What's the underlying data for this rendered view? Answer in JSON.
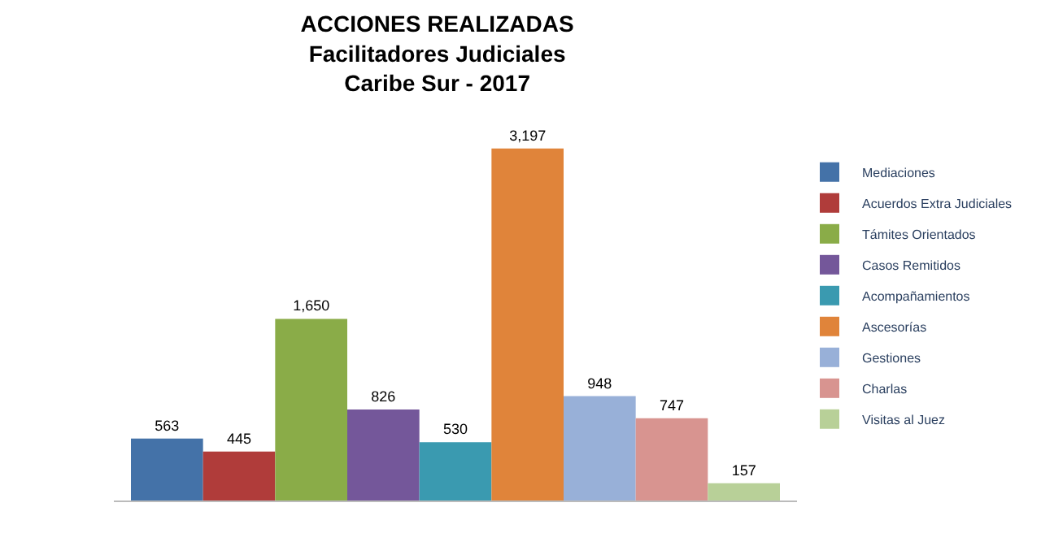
{
  "chart_data": {
    "type": "bar",
    "title": "ACCIONES REALIZADAS",
    "subtitle": "Facilitadores Judiciales\nCaribe Sur - 2017",
    "categories": [
      null
    ],
    "legend": "right",
    "series": [
      {
        "name": "Mediaciones",
        "color": "#4472a8",
        "values": [
          563
        ],
        "value_labels": [
          "563"
        ]
      },
      {
        "name": "Acuerdos Extra Judiciales",
        "color": "#b03c3a",
        "values": [
          445
        ],
        "value_labels": [
          "445"
        ]
      },
      {
        "name": "Támites Orientados",
        "color": "#8aac48",
        "values": [
          1650
        ],
        "value_labels": [
          "1,650"
        ]
      },
      {
        "name": "Casos Remitidos",
        "color": "#74579a",
        "values": [
          826
        ],
        "value_labels": [
          "826"
        ]
      },
      {
        "name": "Acompañamientos",
        "color": "#3a9ab0",
        "values": [
          530
        ],
        "value_labels": [
          "530"
        ]
      },
      {
        "name": "Ascesorías",
        "color": "#e0843a",
        "values": [
          3197
        ],
        "value_labels": [
          "3,197"
        ]
      },
      {
        "name": "Gestiones",
        "color": "#98b0d8",
        "values": [
          948
        ],
        "value_labels": [
          "948"
        ]
      },
      {
        "name": "Charlas",
        "color": "#d89490",
        "values": [
          747
        ],
        "value_labels": [
          "747"
        ]
      },
      {
        "name": "Visitas al Juez",
        "color": "#b8d098",
        "values": [
          157
        ],
        "value_labels": [
          "157"
        ]
      }
    ]
  }
}
